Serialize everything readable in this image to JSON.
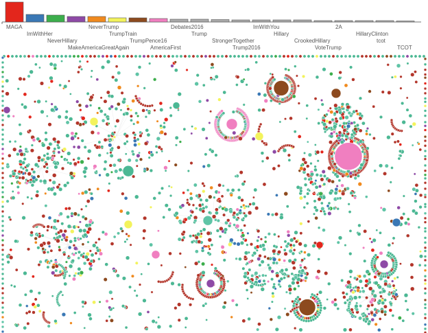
{
  "chart_data": {
    "type": "bar",
    "title": "",
    "xlabel": "",
    "ylabel": "",
    "categories": [
      "MAGA",
      "ImWithHer",
      "NeverHillary",
      "MakeAmericaGreatAgain",
      "NeverTrump",
      "TrumpTrain",
      "TrumpPence16",
      "AmericaFirst",
      "Debates2016",
      "Trump",
      "StrongerTogether",
      "Trump2016",
      "ImWithYou",
      "Hillary",
      "CrookedHillary",
      "VoteTrump",
      "2A",
      "HillaryClinton",
      "tcot",
      "TCOT"
    ],
    "values": [
      29,
      11,
      10,
      8,
      8,
      6,
      6,
      5,
      4,
      4,
      3.5,
      3,
      3,
      3,
      3,
      2,
      2,
      2,
      2,
      1.5
    ],
    "colors": [
      "#e3261c",
      "#3a78b5",
      "#3cae4c",
      "#8e4aa6",
      "#f08a1e",
      "#f3f35c",
      "#8d4a1e",
      "#f07fc0",
      "#aaaaaa",
      "#aaaaaa",
      "#aaaaaa",
      "#aaaaaa",
      "#aaaaaa",
      "#aaaaaa",
      "#aaaaaa",
      "#aaaaaa",
      "#aaaaaa",
      "#aaaaaa",
      "#aaaaaa",
      "#aaaaaa"
    ],
    "grid": false,
    "legend": "none"
  },
  "network": {
    "node_colors": [
      "#4cb894",
      "#b3362b",
      "#5fc4a6",
      "#3a78b5",
      "#3cae4c",
      "#8e4aa6",
      "#f08a1e",
      "#f3f35c",
      "#8d4a1e",
      "#f07fc0",
      "#e3261c"
    ],
    "edge_color": "#eeeeee"
  }
}
